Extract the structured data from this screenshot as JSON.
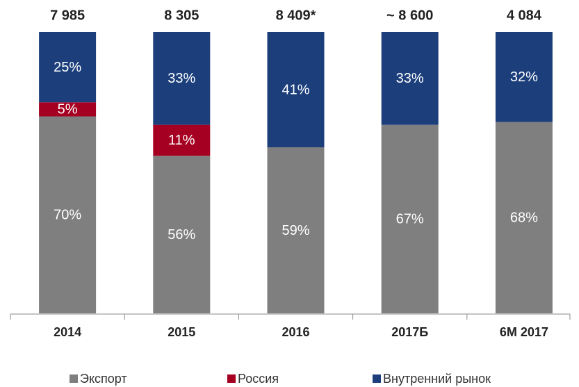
{
  "chart_data": {
    "type": "stacked_bar",
    "categories": [
      "2014",
      "2015",
      "2016",
      "2017Б",
      "6М 2017"
    ],
    "annotations": [
      "7 985",
      "8 305",
      "8 409*",
      "~ 8 600",
      "4 084"
    ],
    "series": [
      {
        "name": "Экспорт",
        "color": "#7f7f7f",
        "values": [
          70,
          56,
          59,
          67,
          68
        ],
        "value_labels": [
          "70%",
          "56%",
          "59%",
          "67%",
          "68%"
        ]
      },
      {
        "name": "Россия",
        "color": "#a50021",
        "values": [
          5,
          11,
          null,
          null,
          null
        ],
        "value_labels": [
          "5%",
          "11%",
          null,
          null,
          null
        ]
      },
      {
        "name": "Внутренний рынок",
        "color": "#1c3f7c",
        "values": [
          25,
          33,
          41,
          33,
          32
        ],
        "value_labels": [
          "25%",
          "33%",
          "41%",
          "33%",
          "32%"
        ]
      }
    ],
    "ylim": [
      0,
      100
    ]
  }
}
